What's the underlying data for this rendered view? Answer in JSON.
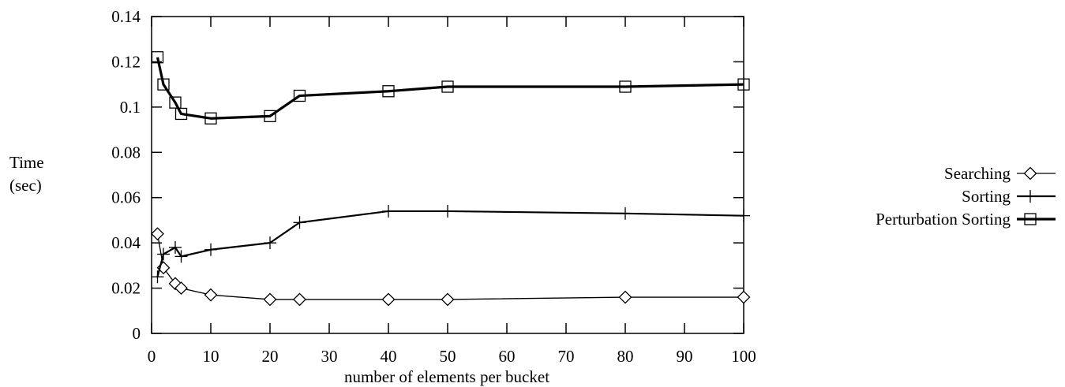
{
  "chart_data": {
    "type": "line",
    "title": "",
    "xlabel": "number of elements per bucket",
    "ylabel_line1": "Time",
    "ylabel_line2": "(sec)",
    "xlim": [
      0,
      100
    ],
    "ylim": [
      0,
      0.14
    ],
    "xticks": [
      "0",
      "10",
      "20",
      "30",
      "40",
      "50",
      "60",
      "70",
      "80",
      "90",
      "100"
    ],
    "yticks": [
      "0",
      "0.02",
      "0.04",
      "0.06",
      "0.08",
      "0.1",
      "0.12",
      "0.14"
    ],
    "grid": false,
    "legend_position": "right",
    "series": [
      {
        "name": "Searching",
        "marker": "diamond",
        "line": "thin",
        "x": [
          1,
          2,
          4,
          5,
          10,
          20,
          25,
          40,
          50,
          80,
          100
        ],
        "y": [
          0.044,
          0.029,
          0.022,
          0.02,
          0.017,
          0.015,
          0.015,
          0.015,
          0.015,
          0.016,
          0.016
        ]
      },
      {
        "name": "Sorting",
        "marker": "plus",
        "line": "medium",
        "x": [
          1,
          2,
          4,
          5,
          10,
          20,
          25,
          40,
          50,
          80,
          100
        ],
        "y": [
          0.025,
          0.035,
          0.038,
          0.034,
          0.037,
          0.04,
          0.049,
          0.054,
          0.054,
          0.053,
          0.052
        ]
      },
      {
        "name": "Perturbation Sorting",
        "marker": "square",
        "line": "thick",
        "x": [
          1,
          2,
          4,
          5,
          10,
          20,
          25,
          40,
          50,
          80,
          100
        ],
        "y": [
          0.122,
          0.11,
          0.102,
          0.097,
          0.095,
          0.096,
          0.105,
          0.107,
          0.109,
          0.109,
          0.11
        ]
      }
    ]
  }
}
